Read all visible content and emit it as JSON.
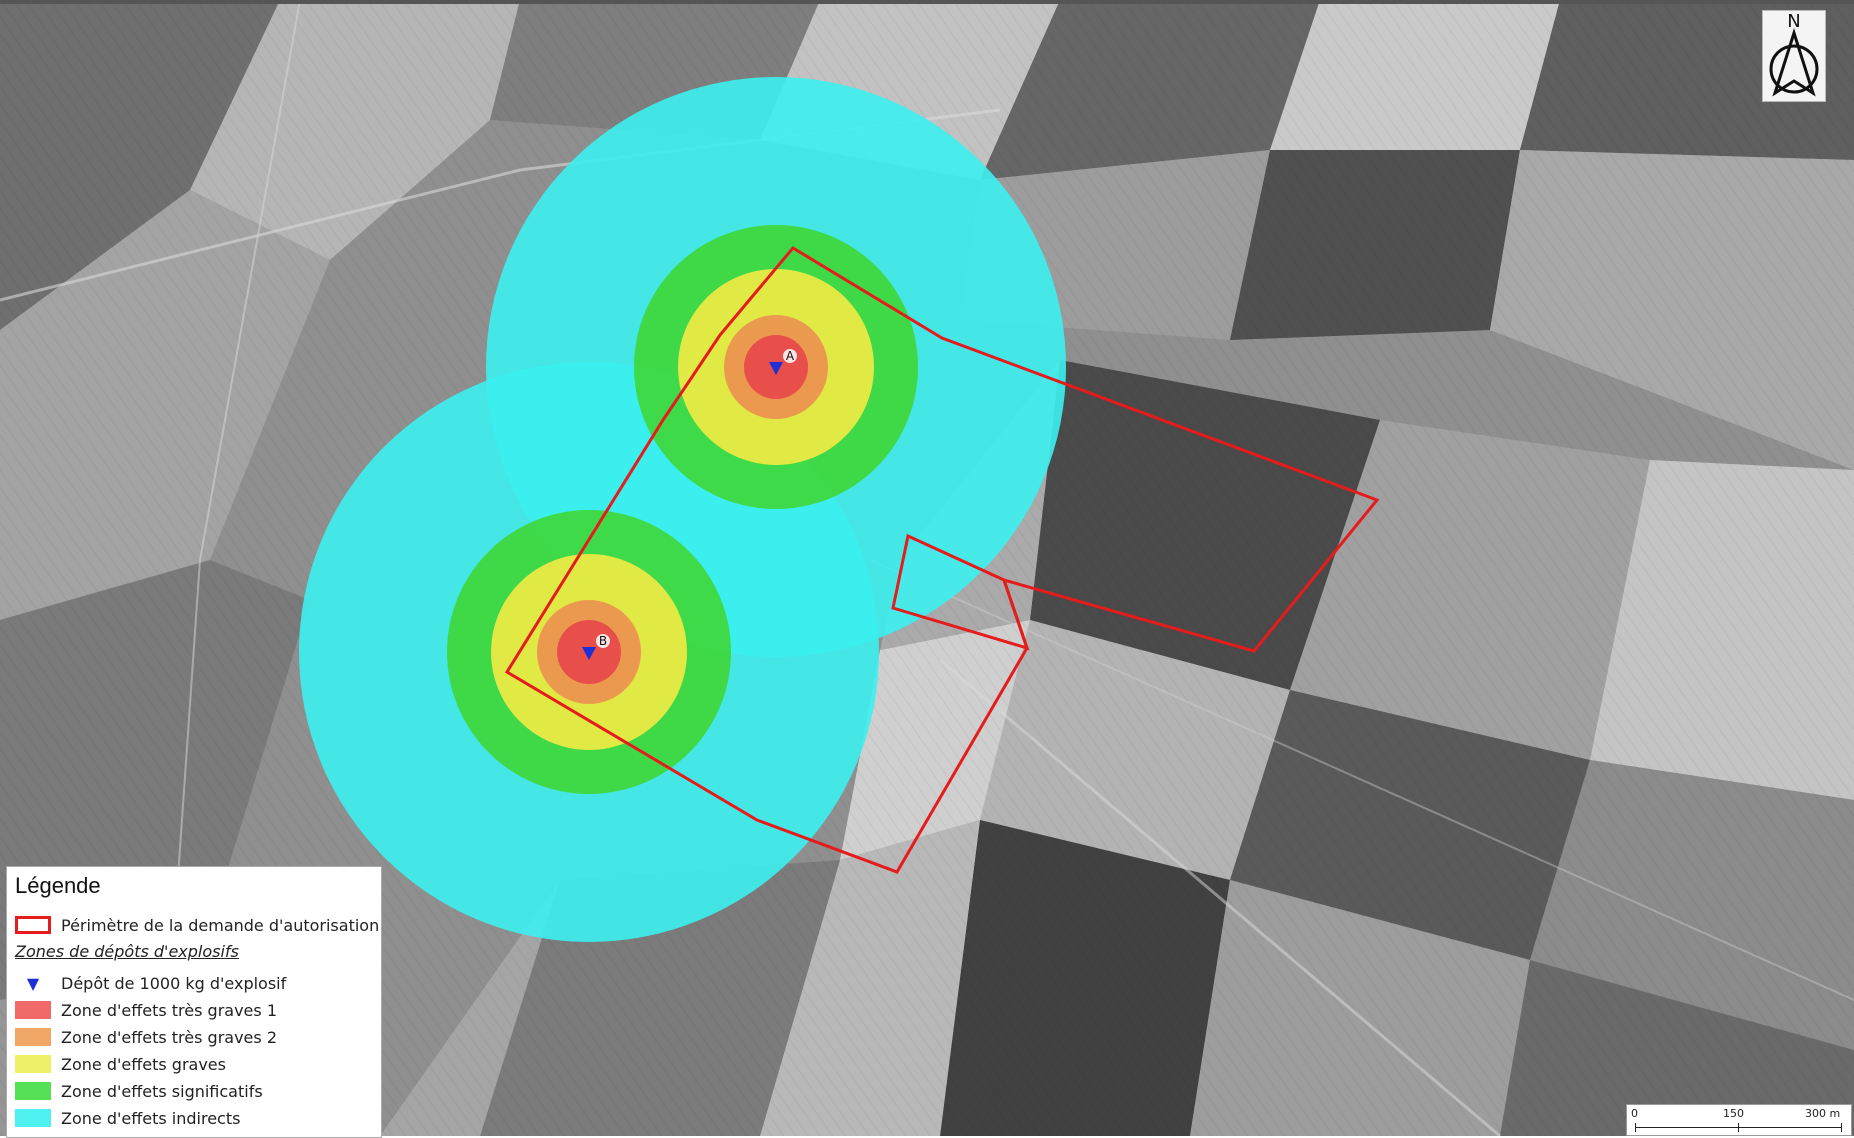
{
  "legend": {
    "title": "Légende",
    "perimeter_label": "Périmètre de la demande d'autorisation",
    "section_label": "Zones de dépôts d'explosifs",
    "depot_label": "Dépôt de 1000 kg d'explosif",
    "zones": [
      {
        "label": "Zone d'effets très graves 1",
        "color": "#f06a6a"
      },
      {
        "label": "Zone d'effets très graves 2",
        "color": "#f0a765"
      },
      {
        "label": "Zone d'effets  graves",
        "color": "#eef068"
      },
      {
        "label": "Zone d'effets significatifs",
        "color": "#56e056"
      },
      {
        "label": "Zone d'effets indirects",
        "color": "#4ff0f0"
      }
    ]
  },
  "depots": [
    {
      "label": "A"
    },
    {
      "label": "B"
    }
  ],
  "north_label": "N",
  "scale": {
    "ticks": [
      "0",
      "150",
      "300 m"
    ]
  },
  "colors": {
    "perimeter": "#e51c1c",
    "depot_marker": "#1e2fd6",
    "zone_very_severe_1": "#e84a4a",
    "zone_very_severe_2": "#eb9550",
    "zone_severe": "#eaea45",
    "zone_significant": "#3fd83f",
    "zone_indirect": "#3cf0f0"
  }
}
